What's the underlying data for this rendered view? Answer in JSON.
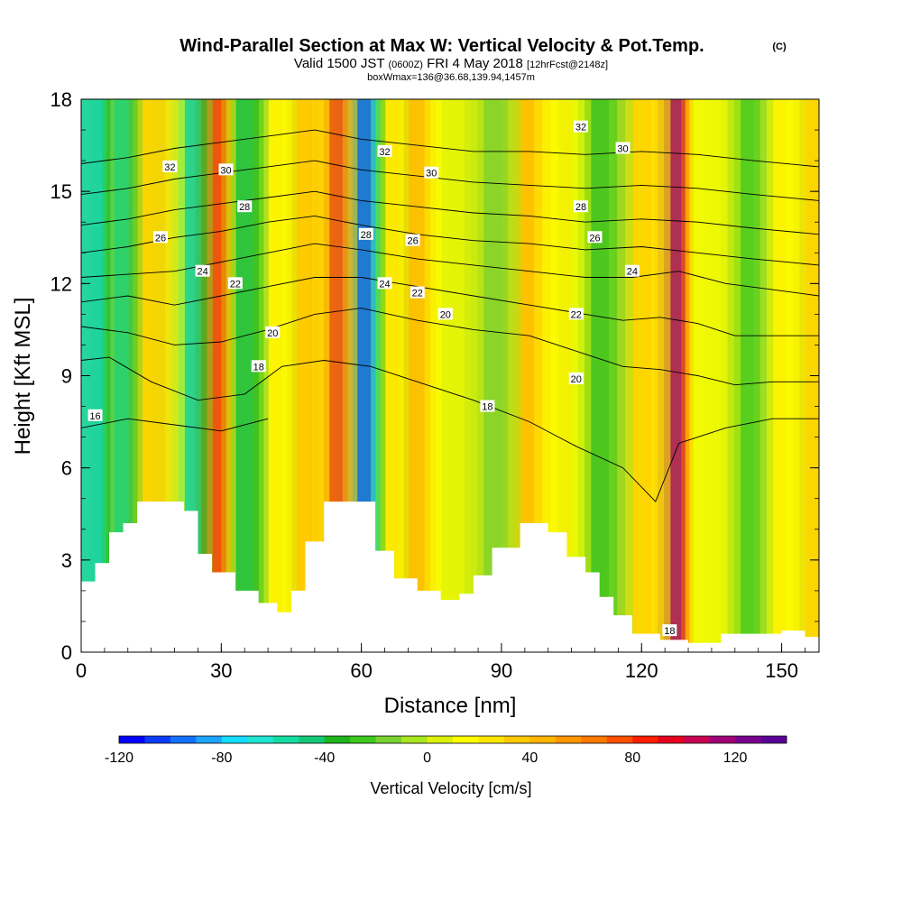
{
  "header": {
    "title": "Wind-Parallel Section at Max W: Vertical Velocity & Pot.Temp.",
    "copyright": "(C)",
    "valid_main": "Valid 1500 JST",
    "valid_z": "(0600Z)",
    "valid_date": "FRI 4 May 2018",
    "valid_fcst": "[12hrFcst@2148z]",
    "box_info": "boxWmax=136@36.68,139.94,1457m"
  },
  "colorbar": {
    "label": "Vertical Velocity [cm/s]",
    "ticks": [
      "-120",
      "-80",
      "-40",
      "0",
      "40",
      "80",
      "120"
    ],
    "colors": [
      "#0000ff",
      "#0a3cff",
      "#1470ff",
      "#1ea4ff",
      "#14dcff",
      "#1ee6d2",
      "#14dca0",
      "#14c878",
      "#1eb41e",
      "#3cc81e",
      "#78d232",
      "#aae61e",
      "#dcf00a",
      "#ffff00",
      "#ffe600",
      "#ffc800",
      "#ffb400",
      "#ff9600",
      "#ff7800",
      "#ff5000",
      "#ff1e00",
      "#e6001e",
      "#c80050",
      "#a00078",
      "#78008c",
      "#5a0096"
    ]
  },
  "chart_data": {
    "type": "heatmap",
    "title": "Wind-Parallel Section at Max W: Vertical Velocity & Pot.Temp.",
    "xlabel": "Distance [nm]",
    "ylabel": "Height [Kft MSL]",
    "xlim": [
      0,
      158
    ],
    "ylim": [
      0,
      18
    ],
    "x_ticks": [
      "0",
      "30",
      "60",
      "90",
      "120",
      "150"
    ],
    "y_ticks": [
      "0",
      "3",
      "6",
      "9",
      "12",
      "15",
      "18"
    ],
    "colorbar_range": [
      -120,
      140
    ],
    "filled_field": "Vertical Velocity [cm/s]",
    "vertical_velocity_bands": [
      {
        "x": 2,
        "w": 2.5,
        "value": -80
      },
      {
        "x": 7,
        "w": 3,
        "value": -60
      },
      {
        "x": 14,
        "w": 4,
        "value": 40
      },
      {
        "x": 21,
        "w": 3.5,
        "value": -70
      },
      {
        "x": 27,
        "w": 3,
        "value": 95
      },
      {
        "x": 34,
        "w": 3,
        "value": -45
      },
      {
        "x": 40,
        "w": 3,
        "value": 20
      },
      {
        "x": 46,
        "w": 3.5,
        "value": 45
      },
      {
        "x": 53,
        "w": 3,
        "value": 90
      },
      {
        "x": 59,
        "w": 3,
        "value": -120
      },
      {
        "x": 64,
        "w": 3,
        "value": 30
      },
      {
        "x": 70,
        "w": 3.5,
        "value": 50
      },
      {
        "x": 78,
        "w": 4,
        "value": 10
      },
      {
        "x": 86,
        "w": 4,
        "value": -20
      },
      {
        "x": 92,
        "w": 5,
        "value": 50
      },
      {
        "x": 101,
        "w": 4,
        "value": 20
      },
      {
        "x": 108,
        "w": 5,
        "value": -35
      },
      {
        "x": 118,
        "w": 4,
        "value": 40
      },
      {
        "x": 126,
        "w": 2.5,
        "value": 136
      },
      {
        "x": 133,
        "w": 4,
        "value": 15
      },
      {
        "x": 140,
        "w": 4,
        "value": -30
      },
      {
        "x": 147,
        "w": 4,
        "value": 20
      },
      {
        "x": 154,
        "w": 4,
        "value": 40
      }
    ],
    "terrain_kft": [
      [
        0,
        2.3
      ],
      [
        3,
        2.9
      ],
      [
        6,
        3.9
      ],
      [
        9,
        4.2
      ],
      [
        12,
        4.9
      ],
      [
        16,
        4.9
      ],
      [
        22,
        4.6
      ],
      [
        25,
        3.2
      ],
      [
        28,
        2.6
      ],
      [
        33,
        2.0
      ],
      [
        38,
        1.6
      ],
      [
        42,
        1.3
      ],
      [
        45,
        2.0
      ],
      [
        48,
        3.6
      ],
      [
        52,
        4.9
      ],
      [
        60,
        4.9
      ],
      [
        63,
        3.3
      ],
      [
        67,
        2.4
      ],
      [
        72,
        2.0
      ],
      [
        77,
        1.7
      ],
      [
        81,
        1.9
      ],
      [
        84,
        2.5
      ],
      [
        88,
        3.4
      ],
      [
        94,
        4.2
      ],
      [
        100,
        3.9
      ],
      [
        104,
        3.1
      ],
      [
        108,
        2.6
      ],
      [
        111,
        1.8
      ],
      [
        114,
        1.2
      ],
      [
        118,
        0.6
      ],
      [
        124,
        0.4
      ],
      [
        130,
        0.3
      ],
      [
        137,
        0.6
      ],
      [
        142,
        0.6
      ],
      [
        150,
        0.7
      ],
      [
        155,
        0.5
      ],
      [
        158,
        0.4
      ]
    ],
    "contour_field": "Potential Temperature",
    "theta_contours": [
      {
        "level": "16",
        "pts": [
          [
            0,
            7.3
          ],
          [
            10,
            7.6
          ],
          [
            20,
            7.4
          ],
          [
            30,
            7.2
          ],
          [
            40,
            7.6
          ]
        ]
      },
      {
        "level": "18",
        "pts": [
          [
            0,
            9.5
          ],
          [
            6,
            9.6
          ],
          [
            15,
            8.8
          ],
          [
            25,
            8.2
          ],
          [
            35,
            8.4
          ],
          [
            43,
            9.3
          ],
          [
            52,
            9.5
          ],
          [
            62,
            9.3
          ],
          [
            72,
            8.8
          ],
          [
            84,
            8.2
          ],
          [
            96,
            7.5
          ],
          [
            106,
            6.7
          ],
          [
            116,
            6.0
          ],
          [
            123,
            4.9
          ],
          [
            128,
            6.8
          ],
          [
            138,
            7.3
          ],
          [
            148,
            7.6
          ],
          [
            158,
            7.6
          ]
        ]
      },
      {
        "level": "20",
        "pts": [
          [
            0,
            10.6
          ],
          [
            10,
            10.4
          ],
          [
            20,
            10.0
          ],
          [
            30,
            10.1
          ],
          [
            40,
            10.5
          ],
          [
            50,
            11.0
          ],
          [
            60,
            11.2
          ],
          [
            72,
            10.8
          ],
          [
            84,
            10.5
          ],
          [
            96,
            10.3
          ],
          [
            108,
            9.7
          ],
          [
            116,
            9.3
          ],
          [
            124,
            9.2
          ],
          [
            132,
            9.0
          ],
          [
            140,
            8.7
          ],
          [
            148,
            8.8
          ],
          [
            158,
            8.8
          ]
        ]
      },
      {
        "level": "22",
        "pts": [
          [
            0,
            11.4
          ],
          [
            10,
            11.6
          ],
          [
            20,
            11.3
          ],
          [
            30,
            11.6
          ],
          [
            40,
            11.9
          ],
          [
            50,
            12.2
          ],
          [
            60,
            12.2
          ],
          [
            72,
            11.9
          ],
          [
            84,
            11.6
          ],
          [
            96,
            11.3
          ],
          [
            108,
            11.0
          ],
          [
            116,
            10.8
          ],
          [
            124,
            10.9
          ],
          [
            132,
            10.7
          ],
          [
            140,
            10.3
          ],
          [
            150,
            10.3
          ],
          [
            158,
            10.3
          ]
        ]
      },
      {
        "level": "24",
        "pts": [
          [
            0,
            12.2
          ],
          [
            10,
            12.3
          ],
          [
            20,
            12.4
          ],
          [
            30,
            12.7
          ],
          [
            40,
            13.0
          ],
          [
            50,
            13.3
          ],
          [
            60,
            13.1
          ],
          [
            72,
            12.8
          ],
          [
            84,
            12.6
          ],
          [
            96,
            12.4
          ],
          [
            108,
            12.2
          ],
          [
            118,
            12.2
          ],
          [
            128,
            12.4
          ],
          [
            138,
            12.0
          ],
          [
            148,
            11.8
          ],
          [
            158,
            11.6
          ]
        ]
      },
      {
        "level": "26",
        "pts": [
          [
            0,
            13.0
          ],
          [
            10,
            13.2
          ],
          [
            20,
            13.5
          ],
          [
            30,
            13.7
          ],
          [
            40,
            14.0
          ],
          [
            50,
            14.2
          ],
          [
            60,
            13.9
          ],
          [
            72,
            13.6
          ],
          [
            84,
            13.4
          ],
          [
            96,
            13.3
          ],
          [
            108,
            13.1
          ],
          [
            120,
            13.2
          ],
          [
            132,
            13.0
          ],
          [
            144,
            12.8
          ],
          [
            158,
            12.6
          ]
        ]
      },
      {
        "level": "28",
        "pts": [
          [
            0,
            13.9
          ],
          [
            10,
            14.1
          ],
          [
            20,
            14.4
          ],
          [
            30,
            14.6
          ],
          [
            40,
            14.8
          ],
          [
            50,
            15.0
          ],
          [
            60,
            14.7
          ],
          [
            72,
            14.5
          ],
          [
            84,
            14.3
          ],
          [
            96,
            14.2
          ],
          [
            108,
            14.0
          ],
          [
            120,
            14.1
          ],
          [
            132,
            14.0
          ],
          [
            144,
            13.8
          ],
          [
            158,
            13.6
          ]
        ]
      },
      {
        "level": "30",
        "pts": [
          [
            0,
            14.9
          ],
          [
            10,
            15.1
          ],
          [
            20,
            15.4
          ],
          [
            30,
            15.6
          ],
          [
            40,
            15.8
          ],
          [
            50,
            16.0
          ],
          [
            60,
            15.7
          ],
          [
            72,
            15.5
          ],
          [
            84,
            15.3
          ],
          [
            96,
            15.2
          ],
          [
            108,
            15.1
          ],
          [
            120,
            15.2
          ],
          [
            132,
            15.1
          ],
          [
            144,
            14.9
          ],
          [
            158,
            14.7
          ]
        ]
      },
      {
        "level": "32",
        "pts": [
          [
            0,
            15.9
          ],
          [
            10,
            16.1
          ],
          [
            20,
            16.4
          ],
          [
            30,
            16.6
          ],
          [
            40,
            16.8
          ],
          [
            50,
            17.0
          ],
          [
            60,
            16.7
          ],
          [
            72,
            16.5
          ],
          [
            84,
            16.3
          ],
          [
            96,
            16.3
          ],
          [
            108,
            16.2
          ],
          [
            120,
            16.3
          ],
          [
            132,
            16.2
          ],
          [
            144,
            16.0
          ],
          [
            158,
            15.8
          ]
        ]
      }
    ],
    "contour_labels": [
      {
        "text": "16",
        "x": 3,
        "y": 7.7
      },
      {
        "text": "18",
        "x": 38,
        "y": 9.3
      },
      {
        "text": "18",
        "x": 87,
        "y": 8.0
      },
      {
        "text": "18",
        "x": 126,
        "y": 0.7
      },
      {
        "text": "20",
        "x": 41,
        "y": 10.4
      },
      {
        "text": "20",
        "x": 78,
        "y": 11.0
      },
      {
        "text": "20",
        "x": 106,
        "y": 8.9
      },
      {
        "text": "22",
        "x": 33,
        "y": 12.0
      },
      {
        "text": "22",
        "x": 72,
        "y": 11.7
      },
      {
        "text": "22",
        "x": 106,
        "y": 11.0
      },
      {
        "text": "24",
        "x": 26,
        "y": 12.4
      },
      {
        "text": "24",
        "x": 65,
        "y": 12.0
      },
      {
        "text": "24",
        "x": 118,
        "y": 12.4
      },
      {
        "text": "26",
        "x": 17,
        "y": 13.5
      },
      {
        "text": "26",
        "x": 71,
        "y": 13.4
      },
      {
        "text": "26",
        "x": 110,
        "y": 13.5
      },
      {
        "text": "28",
        "x": 35,
        "y": 14.5
      },
      {
        "text": "28",
        "x": 61,
        "y": 13.6
      },
      {
        "text": "28",
        "x": 107,
        "y": 14.5
      },
      {
        "text": "30",
        "x": 31,
        "y": 15.7
      },
      {
        "text": "30",
        "x": 75,
        "y": 15.6
      },
      {
        "text": "30",
        "x": 116,
        "y": 16.4
      },
      {
        "text": "32",
        "x": 19,
        "y": 15.8
      },
      {
        "text": "32",
        "x": 65,
        "y": 16.3
      },
      {
        "text": "32",
        "x": 107,
        "y": 17.1
      }
    ]
  }
}
